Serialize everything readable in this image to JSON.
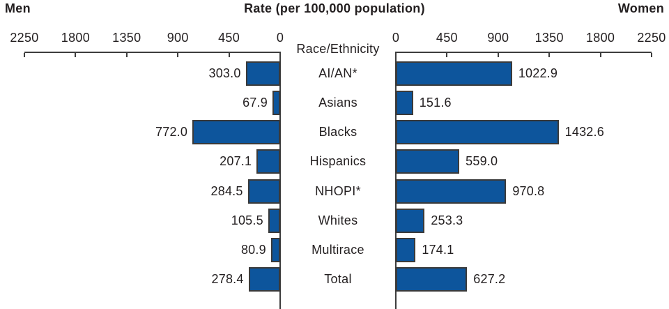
{
  "header": {
    "left_label": "Men",
    "title": "Rate (per 100,000 population)",
    "right_label": "Women"
  },
  "axis": {
    "center_label": "Race/Ethnicity",
    "left_tick_labels": [
      "2250",
      "1800",
      "1350",
      "900",
      "450",
      "0"
    ],
    "right_tick_labels": [
      "0",
      "450",
      "900",
      "1350",
      "1800",
      "2250"
    ]
  },
  "colors": {
    "bar_fill": "#0d559c",
    "bar_border": "#3a3a3a",
    "axis_line": "#3d3d3d",
    "text": "#231f20"
  },
  "chart_data": {
    "type": "bar",
    "orientation": "horizontal_bidirectional",
    "title": "Rate (per 100,000 population)",
    "category_axis_label": "Race/Ethnicity",
    "categories": [
      "AI/AN*",
      "Asians",
      "Blacks",
      "Hispanics",
      "NHOPI*",
      "Whites",
      "Multirace",
      "Total"
    ],
    "series": [
      {
        "name": "Men",
        "side": "left",
        "values": [
          303.0,
          67.9,
          772.0,
          207.1,
          284.5,
          105.5,
          80.9,
          278.4
        ]
      },
      {
        "name": "Women",
        "side": "right",
        "values": [
          1022.9,
          151.6,
          1432.6,
          559.0,
          970.8,
          253.3,
          174.1,
          627.2
        ]
      }
    ],
    "axis_ticks": [
      0,
      450,
      900,
      1350,
      1800,
      2250
    ],
    "xlim": [
      0,
      2250
    ],
    "value_labels_shown": true,
    "grid": false,
    "legend_position": "top-corners"
  }
}
